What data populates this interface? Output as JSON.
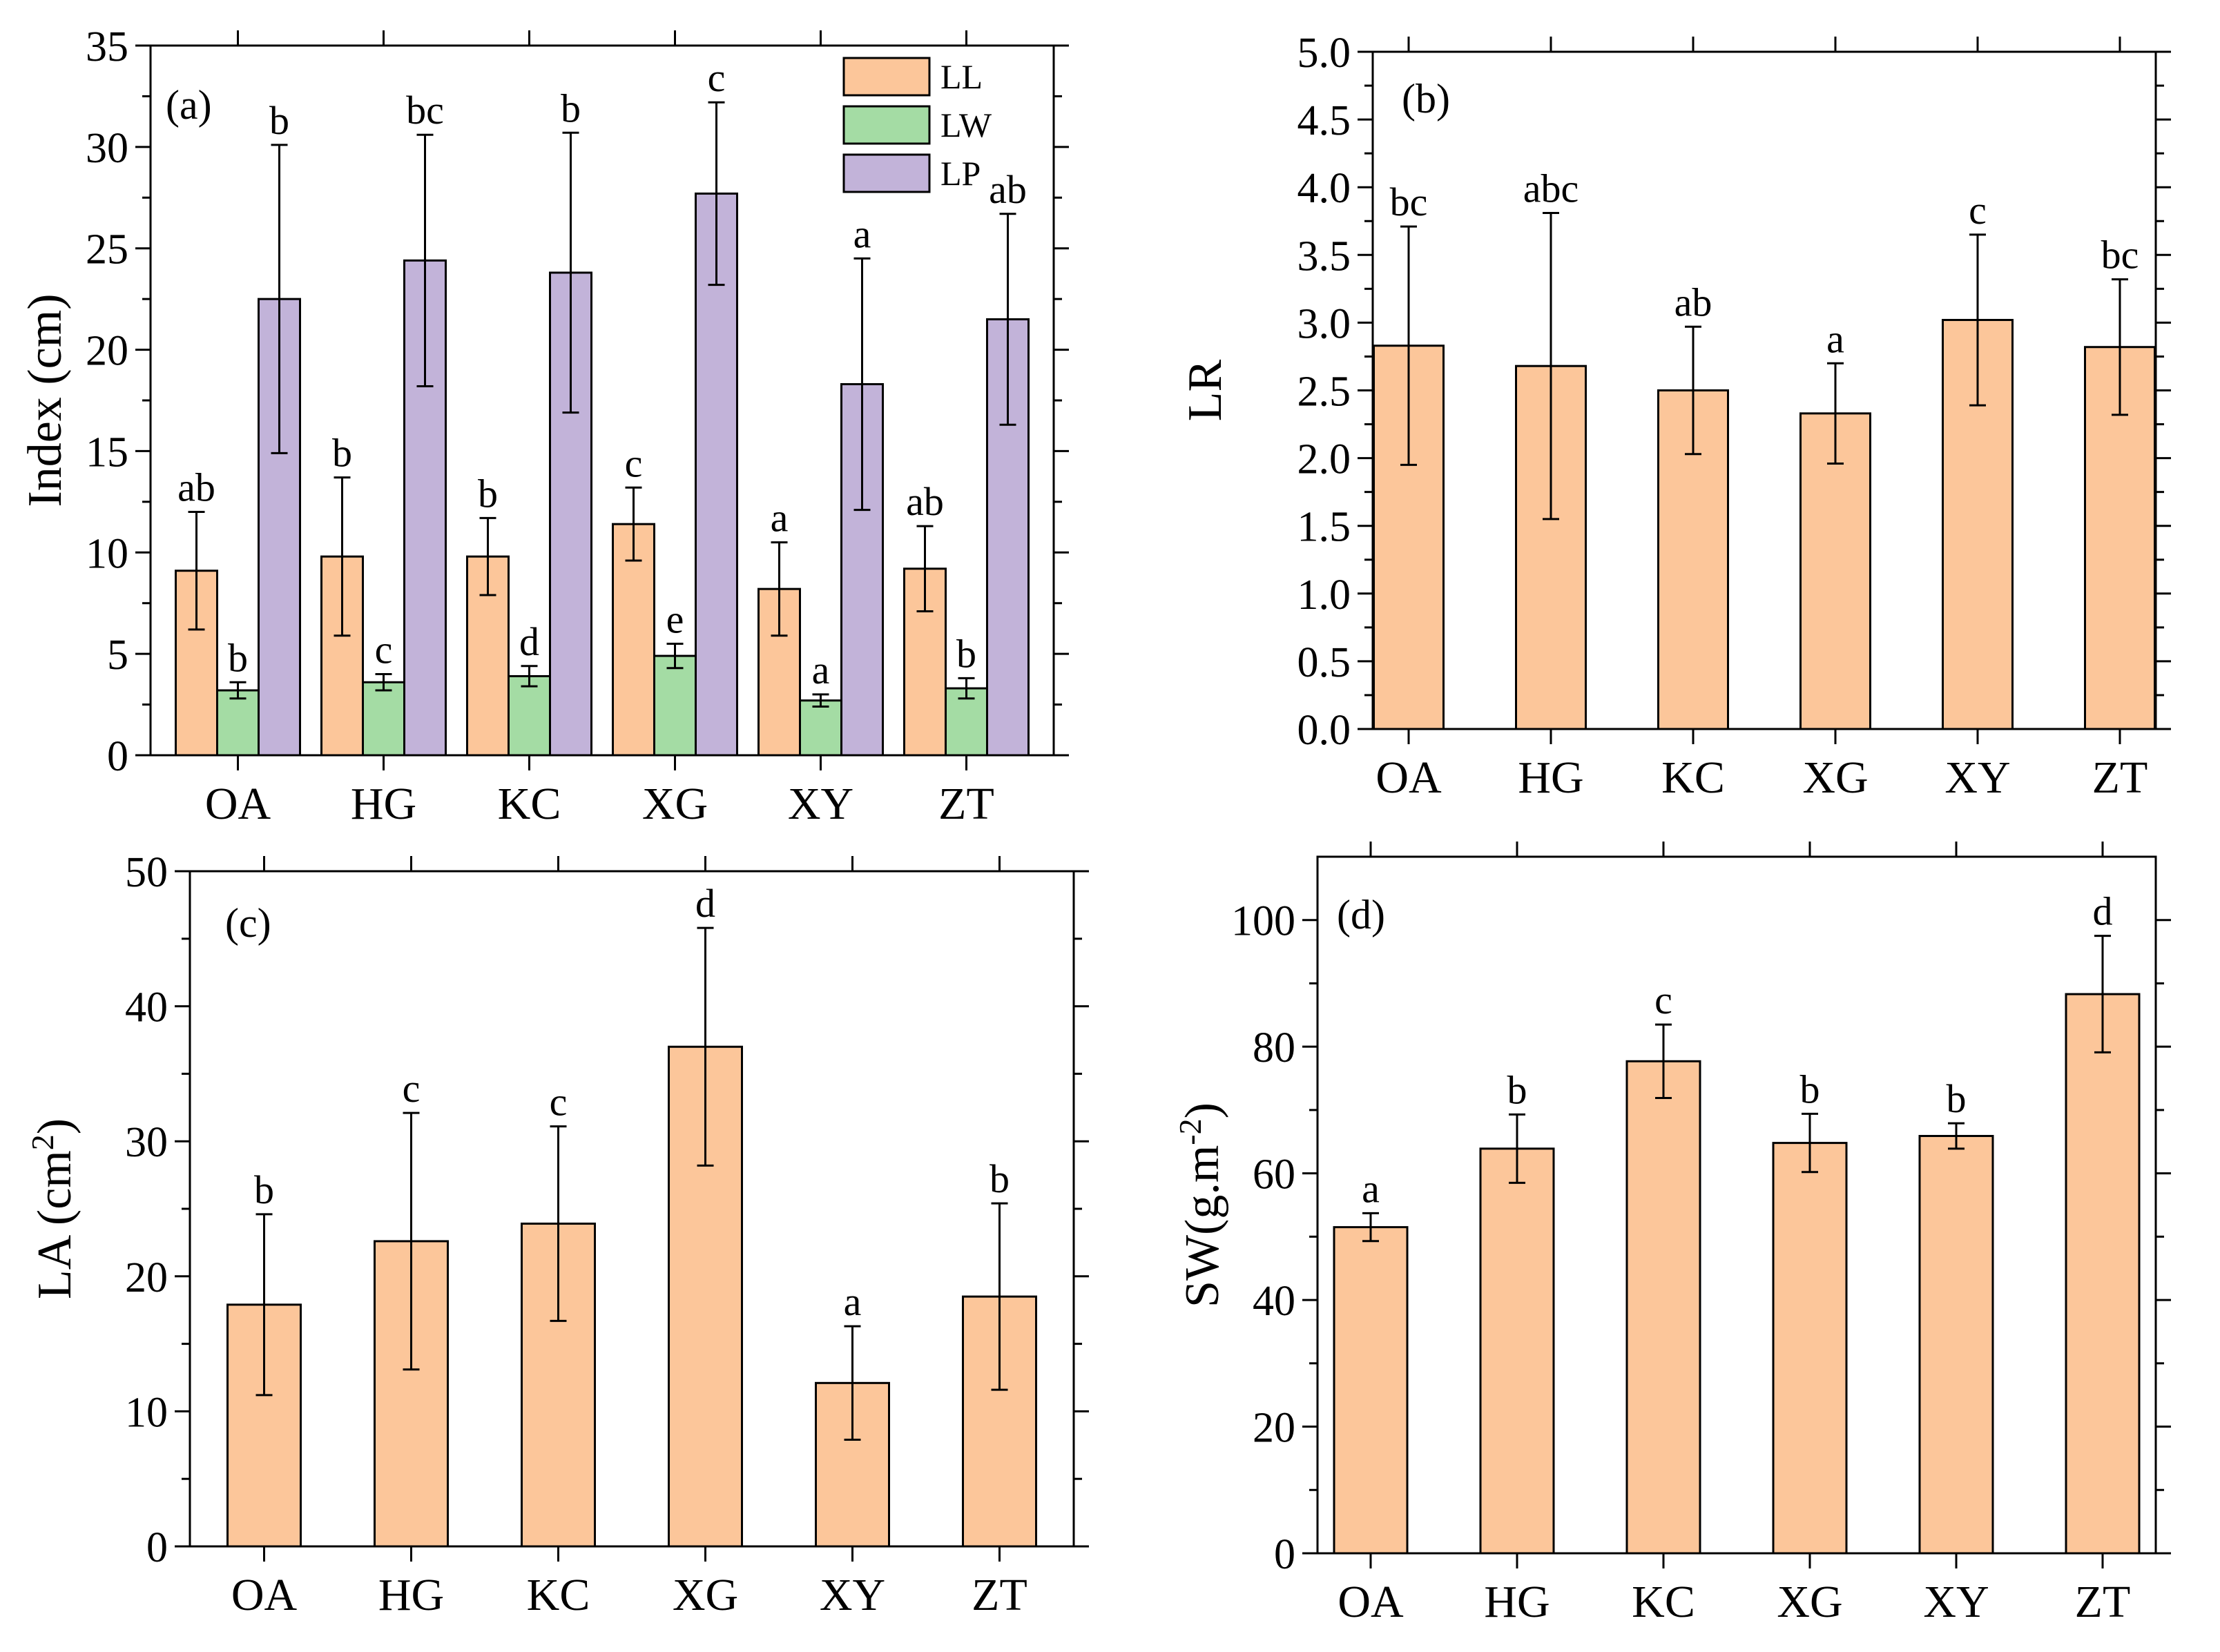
{
  "colors": {
    "LL": "#fcc69a",
    "LW": "#a4dca4",
    "LP": "#c2b3d9",
    "stroke": "#000000"
  },
  "chart_data": [
    {
      "type": "bar",
      "panel_label": "(a)",
      "categories": [
        "OA",
        "HG",
        "KC",
        "XG",
        "XY",
        "ZT"
      ],
      "ylabel": "Index (cm)",
      "xlabel": "",
      "ylim": [
        0,
        35
      ],
      "yticks": [
        0,
        5,
        10,
        15,
        20,
        25,
        30,
        35
      ],
      "ytick_labels": [
        "0",
        "5",
        "10",
        "15",
        "20",
        "25",
        "30",
        "35"
      ],
      "legend_position": "top-right",
      "series": [
        {
          "name": "LL",
          "values": [
            9.1,
            9.8,
            9.8,
            11.4,
            8.2,
            9.2
          ],
          "errors": [
            2.9,
            3.9,
            1.9,
            1.8,
            2.3,
            2.1
          ],
          "letters": [
            "ab",
            "b",
            "b",
            "c",
            "a",
            "ab"
          ]
        },
        {
          "name": "LW",
          "values": [
            3.2,
            3.6,
            3.9,
            4.9,
            2.7,
            3.3
          ],
          "errors": [
            0.4,
            0.4,
            0.5,
            0.6,
            0.3,
            0.5
          ],
          "letters": [
            "b",
            "c",
            "d",
            "e",
            "a",
            "b"
          ]
        },
        {
          "name": "LP",
          "values": [
            22.5,
            24.4,
            23.8,
            27.7,
            18.3,
            21.5
          ],
          "errors": [
            7.6,
            6.2,
            6.9,
            4.5,
            6.2,
            5.2
          ],
          "letters": [
            "b",
            "bc",
            "b",
            "c",
            "a",
            "ab"
          ]
        }
      ]
    },
    {
      "type": "bar",
      "panel_label": "(b)",
      "categories": [
        "OA",
        "HG",
        "KC",
        "XG",
        "XY",
        "ZT"
      ],
      "ylabel": "LR",
      "xlabel": "",
      "ylim": [
        0,
        5
      ],
      "yticks": [
        0,
        0.5,
        1,
        1.5,
        2,
        2.5,
        3,
        3.5,
        4,
        4.5,
        5
      ],
      "ytick_labels": [
        "0.0",
        "0.5",
        "1.0",
        "1.5",
        "2.0",
        "2.5",
        "3.0",
        "3.5",
        "4.0",
        "4.5",
        "5.0"
      ],
      "series": [
        {
          "name": "",
          "values": [
            2.83,
            2.68,
            2.5,
            2.33,
            3.02,
            2.82
          ],
          "errors": [
            0.88,
            1.13,
            0.47,
            0.37,
            0.63,
            0.5
          ],
          "letters": [
            "bc",
            "abc",
            "ab",
            "a",
            "c",
            "bc"
          ]
        }
      ]
    },
    {
      "type": "bar",
      "panel_label": "(c)",
      "categories": [
        "OA",
        "HG",
        "KC",
        "XG",
        "XY",
        "ZT"
      ],
      "ylabel_main": "LA (cm",
      "ylabel_sup": "2",
      "ylabel_close": ")",
      "xlabel": "",
      "ylim": [
        0,
        50
      ],
      "yticks": [
        0,
        10,
        20,
        30,
        40,
        50
      ],
      "ytick_labels": [
        "0",
        "10",
        "20",
        "30",
        "40",
        "50"
      ],
      "series": [
        {
          "name": "",
          "values": [
            17.9,
            22.6,
            23.9,
            37.0,
            12.1,
            18.5
          ],
          "errors": [
            6.7,
            9.5,
            7.2,
            8.8,
            4.2,
            6.9
          ],
          "letters": [
            "b",
            "c",
            "c",
            "d",
            "a",
            "b"
          ]
        }
      ]
    },
    {
      "type": "bar",
      "panel_label": "(d)",
      "categories": [
        "OA",
        "HG",
        "KC",
        "XG",
        "XY",
        "ZT"
      ],
      "ylabel_main": "SW(g.m",
      "ylabel_sup": "-2",
      "ylabel_close": ")",
      "xlabel": "",
      "ylim": [
        0,
        110
      ],
      "yticks": [
        0,
        20,
        40,
        60,
        80,
        100
      ],
      "ytick_labels": [
        "0",
        "20",
        "40",
        "60",
        "80",
        "100"
      ],
      "series": [
        {
          "name": "",
          "values": [
            51.5,
            63.9,
            77.7,
            64.8,
            65.9,
            88.3
          ],
          "errors": [
            2.2,
            5.4,
            5.8,
            4.6,
            2.0,
            9.2
          ],
          "letters": [
            "a",
            "b",
            "c",
            "b",
            "b",
            "d"
          ]
        }
      ]
    }
  ]
}
